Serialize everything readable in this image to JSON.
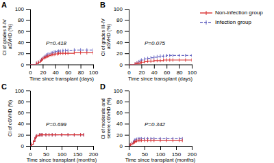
{
  "chart_data": [
    {
      "type": "step",
      "title": "A",
      "xlabel": "Time since transplant (days)",
      "ylabel": "CI of grades II-IV aGVHD (%)",
      "annotations": [
        "P=0.418"
      ],
      "x": [
        0,
        10,
        13,
        16,
        18,
        20,
        22,
        24,
        26,
        28,
        30,
        33,
        35,
        38,
        40,
        43,
        45,
        48,
        52,
        56,
        60,
        70,
        80,
        90,
        100
      ],
      "series": [
        {
          "name": "Non-infection group",
          "color": "#d93030",
          "line_style": "solid",
          "marker": "tick",
          "values": [
            0,
            2,
            4,
            6,
            8,
            10,
            12,
            13,
            14,
            15,
            16,
            17,
            18,
            18,
            19,
            19,
            20,
            20,
            20,
            20,
            20,
            21,
            21,
            21,
            21
          ]
        },
        {
          "name": "Infection group",
          "color": "#6060c0",
          "line_style": "dashed",
          "marker": "tick",
          "values": [
            0,
            2,
            4,
            7,
            9,
            11,
            13,
            15,
            17,
            18,
            19,
            20,
            21,
            22,
            23,
            23,
            24,
            24,
            25,
            25,
            25,
            26,
            26,
            26,
            26
          ]
        }
      ],
      "xlim": [
        0,
        100
      ],
      "ylim": [
        0,
        100
      ],
      "xticks": [
        0,
        20,
        40,
        60,
        80,
        100
      ],
      "yticks": [
        0,
        20,
        40,
        60,
        80,
        100
      ],
      "legend": "right"
    },
    {
      "type": "step",
      "title": "B",
      "xlabel": "Time since transplant (days)",
      "ylabel": "CI of grades III-IV aGVHD (%)",
      "annotations": [
        "P=0.075"
      ],
      "x": [
        0,
        10,
        13,
        16,
        18,
        20,
        25,
        30,
        35,
        40,
        45,
        50,
        55,
        60,
        65,
        70,
        80,
        90,
        100
      ],
      "series": [
        {
          "name": "Non-infection group",
          "color": "#d93030",
          "line_style": "solid",
          "marker": "tick",
          "values": [
            0,
            1,
            2,
            2,
            3,
            4,
            5,
            6,
            6,
            7,
            7,
            7,
            8,
            8,
            8,
            8,
            8,
            8,
            8
          ]
        },
        {
          "name": "Infection group",
          "color": "#6060c0",
          "line_style": "dashed",
          "marker": "tick",
          "values": [
            0,
            1,
            3,
            5,
            6,
            8,
            10,
            11,
            12,
            13,
            14,
            15,
            15,
            16,
            16,
            16,
            16,
            16,
            16
          ]
        }
      ],
      "xlim": [
        0,
        100
      ],
      "ylim": [
        0,
        100
      ],
      "xticks": [
        0,
        20,
        40,
        60,
        80,
        100
      ],
      "yticks": [
        0,
        20,
        40,
        60,
        80,
        100
      ]
    },
    {
      "type": "step",
      "title": "C",
      "xlabel": "Time since transplant (months)",
      "ylabel": "CI of cGVHD (%)",
      "annotations": [
        "P=0.699"
      ],
      "x": [
        0,
        5,
        10,
        15,
        18,
        20,
        25,
        30,
        35,
        40,
        50,
        60,
        70,
        80,
        100,
        120,
        140,
        160,
        170
      ],
      "series": [
        {
          "name": "Non-infection group",
          "color": "#d93030",
          "line_style": "solid",
          "marker": "tick",
          "values": [
            0,
            3,
            8,
            13,
            16,
            18,
            19,
            20,
            20,
            20,
            20,
            20,
            20,
            20,
            20,
            20,
            20,
            20,
            20
          ]
        },
        {
          "name": "Infection group",
          "color": "#6060c0",
          "line_style": "dashed",
          "marker": "tick",
          "values": [
            0,
            3,
            8,
            13,
            16,
            18,
            19,
            20,
            20,
            20,
            20,
            20,
            20,
            20,
            20,
            20,
            20,
            20,
            20
          ]
        }
      ],
      "xlim": [
        0,
        200
      ],
      "ylim": [
        0,
        100
      ],
      "xticks": [
        0,
        50,
        100,
        150,
        200
      ],
      "yticks": [
        0,
        20,
        40,
        60,
        80,
        100
      ]
    },
    {
      "type": "step",
      "title": "D",
      "xlabel": "Time since transplant (months)",
      "ylabel": "CI of moderate and severe cGVHD (%)",
      "annotations": [
        "P=0.342"
      ],
      "x": [
        0,
        5,
        10,
        15,
        18,
        20,
        25,
        30,
        35,
        40,
        50,
        60,
        70,
        80,
        100,
        120,
        140,
        160,
        170
      ],
      "series": [
        {
          "name": "Non-infection group",
          "color": "#d93030",
          "line_style": "solid",
          "marker": "tick",
          "values": [
            0,
            2,
            4,
            6,
            7,
            8,
            9,
            10,
            10,
            10,
            10,
            10,
            10,
            10,
            10,
            10,
            10,
            10,
            10
          ]
        },
        {
          "name": "Infection group",
          "color": "#6060c0",
          "line_style": "dashed",
          "marker": "tick",
          "values": [
            0,
            2,
            5,
            8,
            10,
            11,
            12,
            13,
            13,
            13,
            13,
            13,
            13,
            13,
            13,
            13,
            13,
            13,
            13
          ]
        }
      ],
      "xlim": [
        0,
        200
      ],
      "ylim": [
        0,
        100
      ],
      "xticks": [
        0,
        50,
        100,
        150,
        200
      ],
      "yticks": [
        0,
        20,
        40,
        60,
        80,
        100
      ]
    }
  ]
}
